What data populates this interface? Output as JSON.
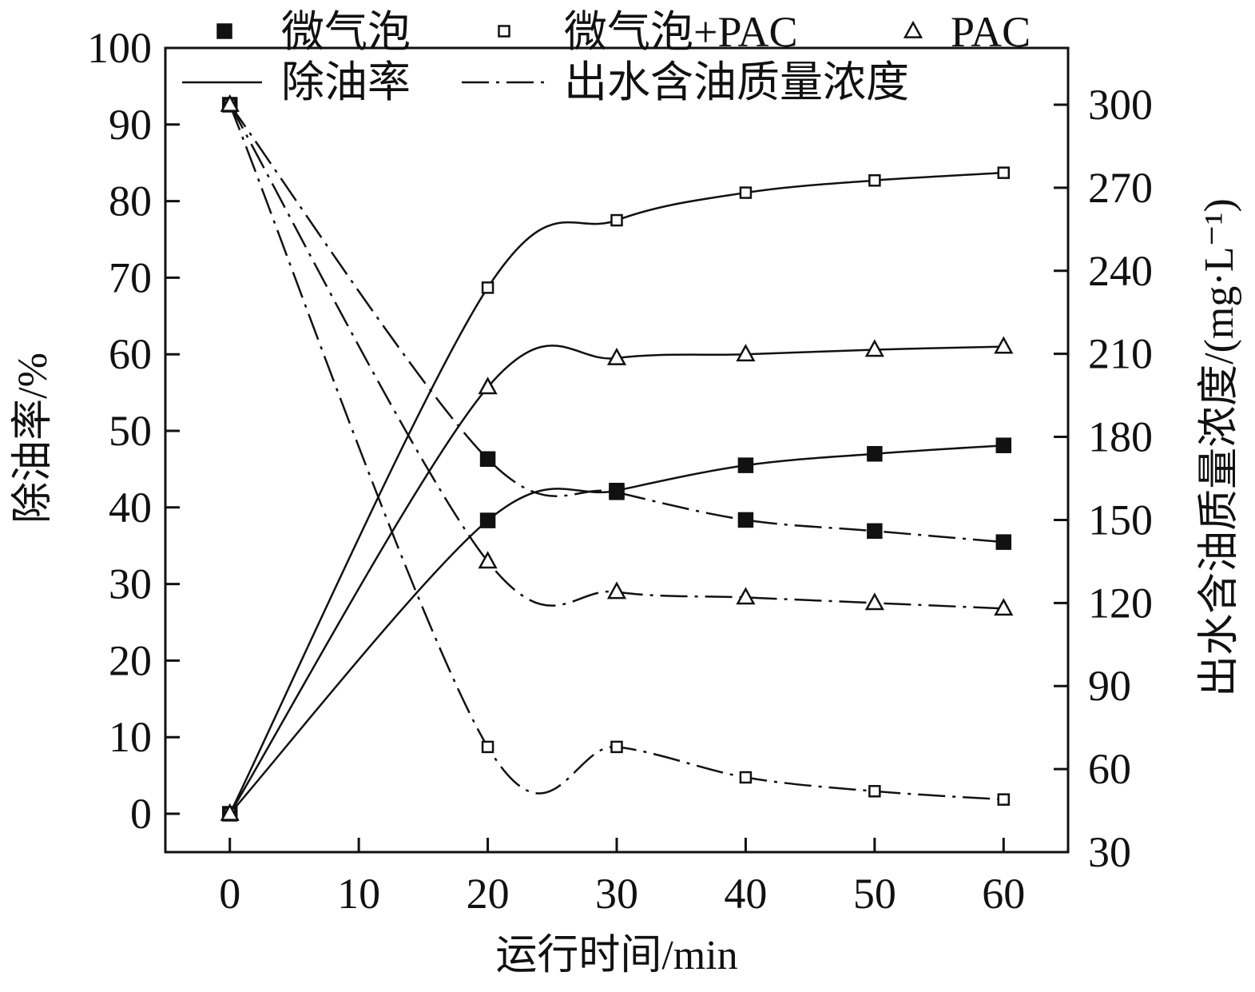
{
  "chart_data": {
    "type": "line",
    "title": "",
    "xlabel": "运行时间/min",
    "ylabel_left": "除油率/%",
    "ylabel_right": "出水含油质量浓度/(mg·L⁻¹)",
    "xlim": [
      -5,
      65
    ],
    "ylim_left": [
      0,
      100
    ],
    "ylim_right": [
      30,
      315
    ],
    "x_ticks": [
      0,
      10,
      20,
      30,
      40,
      50,
      60
    ],
    "y_left_ticks": [
      0,
      10,
      20,
      30,
      40,
      50,
      60,
      70,
      80,
      90,
      100
    ],
    "y_right_ticks": [
      30,
      60,
      90,
      120,
      150,
      180,
      210,
      240,
      270,
      300
    ],
    "grid": false,
    "legend_position": "top",
    "legend": {
      "markers": [
        {
          "label": "微气泡",
          "marker": "filled-square"
        },
        {
          "label": "微气泡+PAC",
          "marker": "open-square"
        },
        {
          "label": "PAC",
          "marker": "open-triangle"
        }
      ],
      "lines": [
        {
          "label": "除油率",
          "style": "solid"
        },
        {
          "label": "出水含油质量浓度",
          "style": "dash-dot"
        }
      ]
    },
    "x": [
      0,
      20,
      30,
      40,
      50,
      60
    ],
    "series": [
      {
        "name": "微气泡",
        "metric": "除油率",
        "axis": "left",
        "marker": "filled-square",
        "line": "solid",
        "values": [
          0,
          38.3,
          42.2,
          45.5,
          47.0,
          48.1
        ]
      },
      {
        "name": "微气泡+PAC",
        "metric": "除油率",
        "axis": "left",
        "marker": "open-square",
        "line": "solid",
        "values": [
          0,
          68.7,
          77.5,
          81.1,
          82.7,
          83.7
        ]
      },
      {
        "name": "PAC",
        "metric": "除油率",
        "axis": "left",
        "marker": "open-triangle",
        "line": "solid",
        "values": [
          0,
          55.7,
          59.5,
          60.0,
          60.6,
          61.0
        ]
      },
      {
        "name": "微气泡",
        "metric": "出水含油质量浓度",
        "axis": "right",
        "marker": "filled-square",
        "line": "dash-dot",
        "values": [
          300,
          172,
          160,
          150,
          146,
          142
        ]
      },
      {
        "name": "微气泡+PAC",
        "metric": "出水含油质量浓度",
        "axis": "right",
        "marker": "open-square",
        "line": "dash-dot",
        "values": [
          300,
          68,
          68,
          57,
          52,
          49
        ]
      },
      {
        "name": "PAC",
        "metric": "出水含油质量浓度",
        "axis": "right",
        "marker": "open-triangle",
        "line": "dash-dot",
        "values": [
          300,
          135,
          124,
          122,
          120,
          118
        ]
      }
    ]
  }
}
